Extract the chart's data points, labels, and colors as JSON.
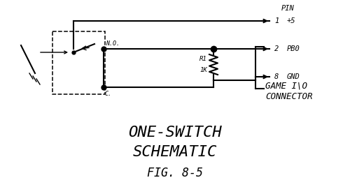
{
  "bg_color": "#ffffff",
  "line_color": "#000000",
  "fig_width": 5.0,
  "fig_height": 2.78,
  "dpi": 100,
  "title1": "ONE-SWITCH",
  "title2": "SCHEMATIC",
  "title3": "FIG. 8-5",
  "pin_header": "PIN",
  "pin1_num": "1",
  "pin1_lbl": "+5",
  "pin2_num": "2",
  "pin2_lbl": "PB0",
  "pin8_num": "8",
  "pin8_lbl": "GND",
  "res_lbl1": "R1",
  "res_lbl2": "1K",
  "no_lbl": "N.O.",
  "c_lbl": "C.",
  "connector1": "GAME I\\O",
  "connector2": "CONNECTOR"
}
